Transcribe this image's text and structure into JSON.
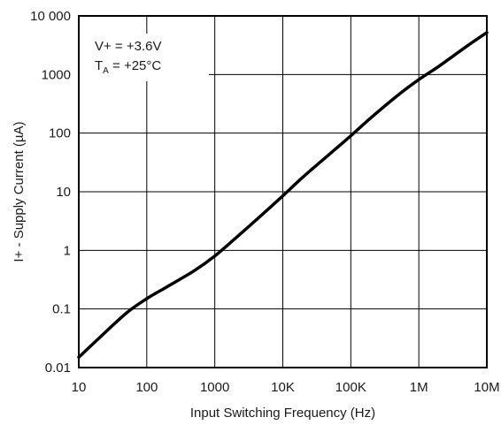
{
  "chart_data": {
    "type": "line",
    "xlabel": "Input Switching Frequency (Hz)",
    "ylabel": "I+ - Supply Current (µA)",
    "x_scale": "log",
    "y_scale": "log",
    "xlim": [
      10,
      10000000
    ],
    "ylim": [
      0.01,
      10000
    ],
    "x_ticks": [
      {
        "value": 10,
        "label": "10"
      },
      {
        "value": 100,
        "label": "100"
      },
      {
        "value": 1000,
        "label": "1000"
      },
      {
        "value": 10000,
        "label": "10K"
      },
      {
        "value": 100000,
        "label": "100K"
      },
      {
        "value": 1000000,
        "label": "1M"
      },
      {
        "value": 10000000,
        "label": "10M"
      }
    ],
    "y_ticks": [
      {
        "value": 0.01,
        "label": "0.01"
      },
      {
        "value": 0.1,
        "label": "0.1"
      },
      {
        "value": 1,
        "label": "1"
      },
      {
        "value": 10,
        "label": "10"
      },
      {
        "value": 100,
        "label": "100"
      },
      {
        "value": 1000,
        "label": "1000"
      },
      {
        "value": 10000,
        "label": "10 000"
      }
    ],
    "grid": true,
    "annotation": {
      "line1": "V+ = +3.6V",
      "line2_prefix": "T",
      "line2_sub": "A",
      "line2_suffix": " = +25°C"
    },
    "series": [
      {
        "x": [
          10,
          20,
          50,
          100,
          200,
          500,
          1000,
          2000,
          5000,
          10000,
          20000,
          50000,
          100000,
          200000,
          500000,
          1000000,
          2000000,
          5000000,
          10000000
        ],
        "y": [
          0.015,
          0.032,
          0.085,
          0.15,
          0.24,
          0.45,
          0.8,
          1.6,
          4.1,
          8.5,
          18,
          45,
          90,
          185,
          450,
          820,
          1400,
          3000,
          5200
        ]
      }
    ]
  }
}
